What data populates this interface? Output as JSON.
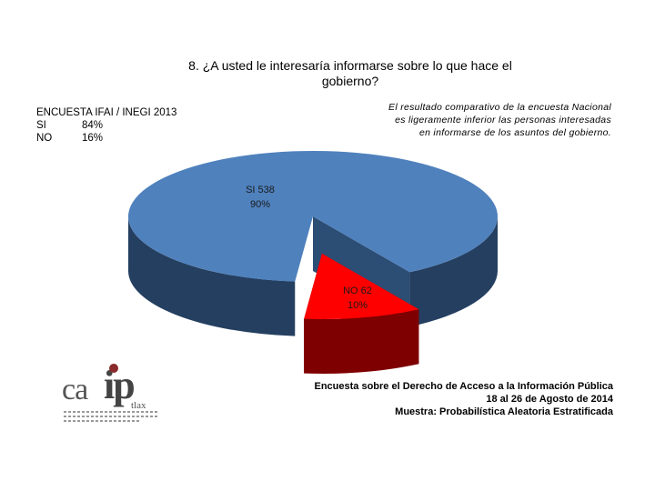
{
  "title": "8. ¿A usted le interesaría informarse sobre lo que hace el gobierno?",
  "survey": {
    "heading": "ENCUESTA IFAI / INEGI 2013",
    "rows": [
      {
        "label": "SI",
        "value": "84%"
      },
      {
        "label": "NO",
        "value": "16%"
      }
    ]
  },
  "note": "El resultado comparativo de la encuesta Nacional es ligeramente inferior las personas interesadas en informarse de los asuntos del gobierno.",
  "footer": {
    "line1": "Encuesta sobre el Derecho de Acceso a la Información Pública",
    "line2": "18 al 26 de Agosto de 2014",
    "line3": "Muestra: Probabilística Aleatoria Estratificada"
  },
  "logo": {
    "text_ca": "ca",
    "text_ip": "ip",
    "text_tlax": "tlax"
  },
  "colors": {
    "si": "#4f81bd",
    "si_side": "#243f60",
    "no": "#ff0000",
    "no_side": "#7f0000"
  },
  "chart_data": {
    "type": "pie",
    "style": "3d-exploded",
    "slices": [
      {
        "label": "SI",
        "count": 538,
        "percent": "90%",
        "value": 538
      },
      {
        "label": "NO",
        "count": 62,
        "percent": "10%",
        "value": 62
      }
    ],
    "data_labels": [
      {
        "line1": "SI 538",
        "line2": "90%"
      },
      {
        "line1": "NO 62",
        "line2": "10%"
      }
    ]
  }
}
